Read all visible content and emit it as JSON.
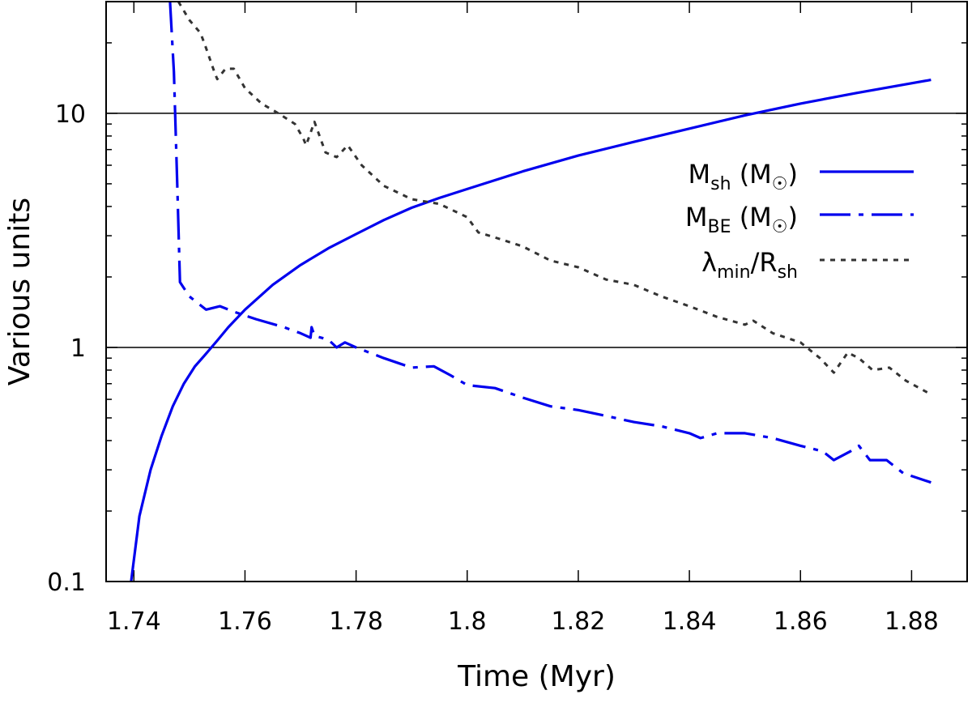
{
  "chart_data": {
    "type": "line",
    "xlabel": "Time (Myr)",
    "ylabel": "Various units",
    "xlim": [
      1.735,
      1.89
    ],
    "ylim": [
      0.1,
      30
    ],
    "yscale": "log",
    "x_ticks": [
      1.74,
      1.76,
      1.78,
      1.8,
      1.82,
      1.84,
      1.86,
      1.88
    ],
    "x_tick_labels": [
      "1.74",
      "1.76",
      "1.78",
      "1.8",
      "1.82",
      "1.84",
      "1.86",
      "1.88"
    ],
    "y_ticks": [
      0.1,
      1,
      10
    ],
    "y_tick_labels": [
      "0.1",
      "1",
      "10"
    ],
    "horizontal_reference_lines": [
      1,
      10
    ],
    "legend_position": "right",
    "series": [
      {
        "name": "M_sh (M_sun)",
        "legend_main": "M",
        "legend_sub": "sh",
        "legend_suffix": " (M",
        "legend_sym": "☉",
        "legend_close": ")",
        "color": "#0000ee",
        "style": "solid",
        "points": [
          [
            1.7395,
            0.1
          ],
          [
            1.741,
            0.19
          ],
          [
            1.743,
            0.3
          ],
          [
            1.745,
            0.42
          ],
          [
            1.747,
            0.56
          ],
          [
            1.749,
            0.7
          ],
          [
            1.751,
            0.83
          ],
          [
            1.753,
            0.94
          ],
          [
            1.755,
            1.07
          ],
          [
            1.757,
            1.22
          ],
          [
            1.76,
            1.45
          ],
          [
            1.765,
            1.85
          ],
          [
            1.77,
            2.25
          ],
          [
            1.775,
            2.65
          ],
          [
            1.78,
            3.05
          ],
          [
            1.785,
            3.5
          ],
          [
            1.79,
            3.95
          ],
          [
            1.795,
            4.35
          ],
          [
            1.8,
            4.75
          ],
          [
            1.81,
            5.65
          ],
          [
            1.82,
            6.6
          ],
          [
            1.83,
            7.55
          ],
          [
            1.84,
            8.6
          ],
          [
            1.85,
            9.8
          ],
          [
            1.86,
            11.0
          ],
          [
            1.87,
            12.2
          ],
          [
            1.8835,
            13.9
          ]
        ]
      },
      {
        "name": "M_BE (M_sun)",
        "legend_main": "M",
        "legend_sub": "BE",
        "legend_suffix": " (M",
        "legend_sym": "☉",
        "legend_close": ")",
        "color": "#0000ee",
        "style": "dashdot",
        "points": [
          [
            1.7465,
            30
          ],
          [
            1.7472,
            15
          ],
          [
            1.7478,
            5
          ],
          [
            1.7483,
            1.9
          ],
          [
            1.75,
            1.65
          ],
          [
            1.753,
            1.45
          ],
          [
            1.7555,
            1.5
          ],
          [
            1.758,
            1.42
          ],
          [
            1.762,
            1.32
          ],
          [
            1.767,
            1.22
          ],
          [
            1.77,
            1.15
          ],
          [
            1.7718,
            1.1
          ],
          [
            1.772,
            1.22
          ],
          [
            1.7725,
            1.12
          ],
          [
            1.775,
            1.08
          ],
          [
            1.7765,
            1.0
          ],
          [
            1.778,
            1.05
          ],
          [
            1.78,
            1.0
          ],
          [
            1.785,
            0.9
          ],
          [
            1.79,
            0.82
          ],
          [
            1.794,
            0.83
          ],
          [
            1.797,
            0.76
          ],
          [
            1.8,
            0.69
          ],
          [
            1.805,
            0.67
          ],
          [
            1.81,
            0.61
          ],
          [
            1.815,
            0.56
          ],
          [
            1.82,
            0.54
          ],
          [
            1.825,
            0.51
          ],
          [
            1.83,
            0.48
          ],
          [
            1.835,
            0.46
          ],
          [
            1.84,
            0.43
          ],
          [
            1.842,
            0.41
          ],
          [
            1.845,
            0.43
          ],
          [
            1.85,
            0.43
          ],
          [
            1.855,
            0.41
          ],
          [
            1.86,
            0.38
          ],
          [
            1.864,
            0.36
          ],
          [
            1.866,
            0.33
          ],
          [
            1.869,
            0.36
          ],
          [
            1.8705,
            0.38
          ],
          [
            1.8725,
            0.33
          ],
          [
            1.8755,
            0.33
          ],
          [
            1.8785,
            0.29
          ],
          [
            1.8835,
            0.265
          ]
        ]
      },
      {
        "name": "λmin/Rsh",
        "legend_main": "λ",
        "legend_sub": "min",
        "legend_suffix": "/R",
        "legend_sub2": "sh",
        "color": "#333333",
        "style": "dotted",
        "points": [
          [
            1.748,
            30
          ],
          [
            1.75,
            25
          ],
          [
            1.752,
            22
          ],
          [
            1.753,
            19
          ],
          [
            1.7545,
            15
          ],
          [
            1.755,
            14
          ],
          [
            1.7565,
            15.5
          ],
          [
            1.758,
            15.5
          ],
          [
            1.76,
            12.8
          ],
          [
            1.763,
            11
          ],
          [
            1.766,
            10
          ],
          [
            1.769,
            9
          ],
          [
            1.7705,
            7.8
          ],
          [
            1.771,
            7.3
          ],
          [
            1.7725,
            9.2
          ],
          [
            1.7745,
            6.8
          ],
          [
            1.7765,
            6.5
          ],
          [
            1.7785,
            7.3
          ],
          [
            1.781,
            6.0
          ],
          [
            1.785,
            4.9
          ],
          [
            1.79,
            4.3
          ],
          [
            1.795,
            4.1
          ],
          [
            1.8,
            3.6
          ],
          [
            1.802,
            3.1
          ],
          [
            1.806,
            2.9
          ],
          [
            1.81,
            2.7
          ],
          [
            1.815,
            2.35
          ],
          [
            1.82,
            2.2
          ],
          [
            1.825,
            1.95
          ],
          [
            1.83,
            1.85
          ],
          [
            1.835,
            1.65
          ],
          [
            1.84,
            1.5
          ],
          [
            1.845,
            1.35
          ],
          [
            1.85,
            1.25
          ],
          [
            1.8515,
            1.3
          ],
          [
            1.855,
            1.15
          ],
          [
            1.86,
            1.05
          ],
          [
            1.8635,
            0.9
          ],
          [
            1.866,
            0.78
          ],
          [
            1.8685,
            0.95
          ],
          [
            1.8705,
            0.9
          ],
          [
            1.873,
            0.8
          ],
          [
            1.876,
            0.82
          ],
          [
            1.879,
            0.72
          ],
          [
            1.8835,
            0.63
          ]
        ]
      }
    ]
  }
}
